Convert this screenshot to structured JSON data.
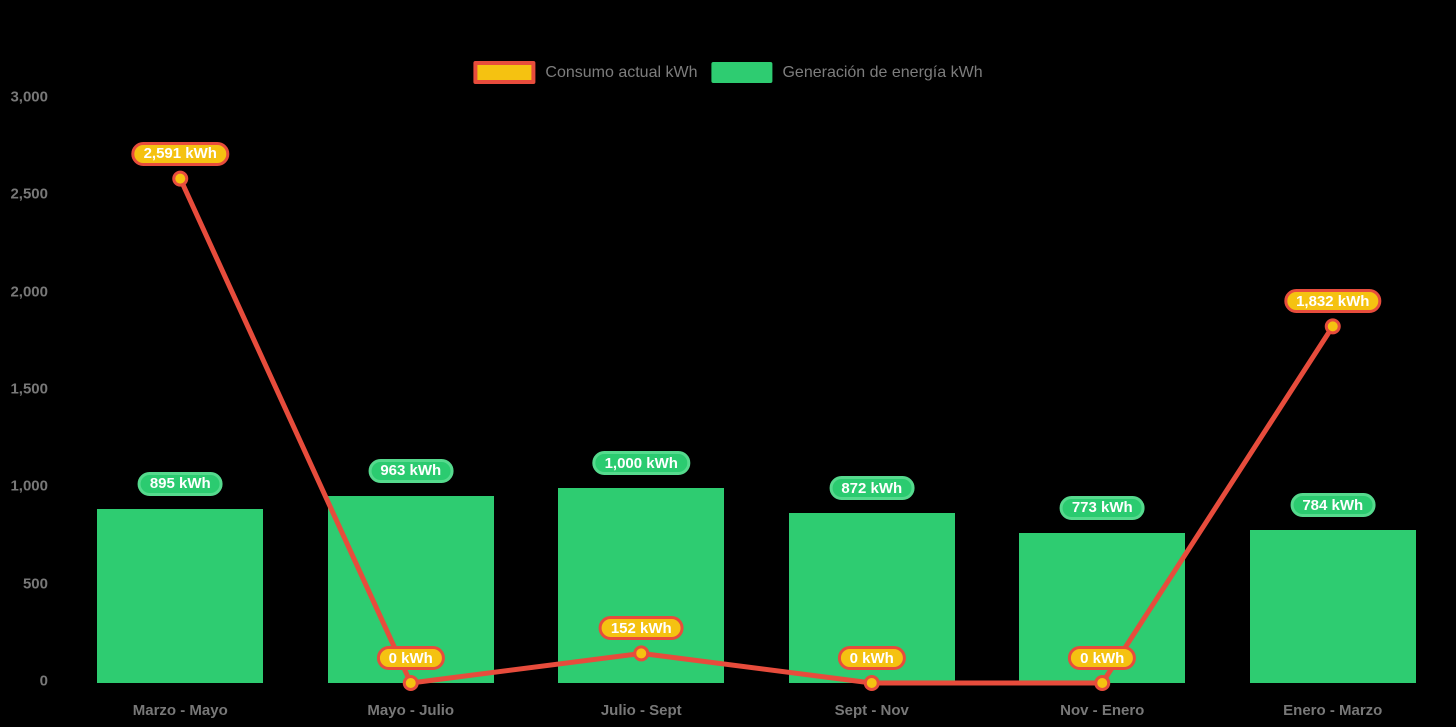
{
  "page": {
    "background": "#000000"
  },
  "legend": {
    "items": [
      {
        "label": "Consumo actual kWh",
        "swatch": "consumo"
      },
      {
        "label": "Generación de energía kWh",
        "swatch": "generacion"
      }
    ]
  },
  "colors": {
    "bar_green": "#2ecc71",
    "line_red": "#e74c3c",
    "point_amber": "#f5c211",
    "axis_text": "#787878",
    "pill_text": "#ffffff"
  },
  "chart_data": {
    "type": "combo-bar-line",
    "title": "",
    "xlabel": "",
    "ylabel": "",
    "grid": false,
    "legend_position": "top-center",
    "background": "#000000",
    "categories": [
      "Marzo - Mayo",
      "Mayo - Julio",
      "Julio - Sept",
      "Sept - Nov",
      "Nov - Enero",
      "Enero - Marzo"
    ],
    "ylim": [
      0,
      3000
    ],
    "yticks": [
      {
        "value": 3000,
        "label": "3,000"
      },
      {
        "value": 2500,
        "label": "2,500"
      },
      {
        "value": 2000,
        "label": "2,000"
      },
      {
        "value": 1500,
        "label": "1,500"
      },
      {
        "value": 1000,
        "label": "1,000"
      },
      {
        "value": 500,
        "label": "500"
      },
      {
        "value": 0,
        "label": "0"
      }
    ],
    "series": [
      {
        "name": "Generación de energía kWh",
        "type": "bar",
        "color": "#2ecc71",
        "values": [
          895,
          963,
          1000,
          872,
          773,
          784
        ],
        "labels": [
          "895 kWh",
          "963 kWh",
          "1,000 kWh",
          "872 kWh",
          "773 kWh",
          "784 kWh"
        ]
      },
      {
        "name": "Consumo actual kWh",
        "type": "line",
        "color": "#e74c3c",
        "point_color": "#f5c211",
        "values": [
          2591,
          0,
          152,
          0,
          0,
          1832
        ],
        "labels": [
          "2,591 kWh",
          "0 kWh",
          "152 kWh",
          "0 kWh",
          "0 kWh",
          "1,832 kWh"
        ]
      }
    ]
  }
}
